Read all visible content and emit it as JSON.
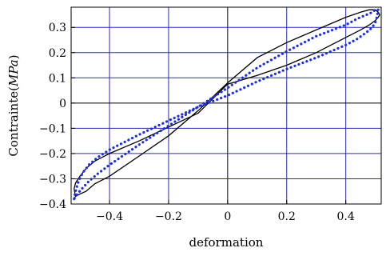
{
  "chart_data": {
    "type": "line",
    "title": "",
    "xlabel": "deformation",
    "ylabel": "Contrainte(",
    "ylabel_math": "MPa",
    "ylabel_close": ")",
    "xlim": [
      -0.53,
      0.52
    ],
    "ylim": [
      -0.4,
      0.38
    ],
    "xticks": [
      -0.4,
      -0.2,
      0,
      0.2,
      0.4
    ],
    "xtick_labels": [
      "−0.4",
      "−0.2",
      "0",
      "0.2",
      "0.4"
    ],
    "yticks": [
      -0.4,
      -0.3,
      -0.2,
      -0.1,
      0,
      0.1,
      0.2,
      0.3
    ],
    "ytick_labels": [
      "−0.4",
      "−0.3",
      "−0.2",
      "−0.1",
      "0",
      "0.1",
      "0.2",
      "0.3"
    ],
    "grid": true,
    "series": [
      {
        "name": "",
        "style": "solid",
        "color": "#000000",
        "x": [
          -0.52,
          -0.515,
          -0.5,
          -0.48,
          -0.45,
          -0.4,
          -0.3,
          -0.2,
          -0.1,
          0.0,
          0.1,
          0.2,
          0.3,
          0.4,
          0.45,
          0.48,
          0.5,
          0.51,
          0.515,
          0.51,
          0.5,
          0.48,
          0.45,
          0.4,
          0.3,
          0.2,
          0.1,
          0.0,
          -0.1,
          -0.2,
          -0.3,
          -0.4,
          -0.45,
          -0.48,
          -0.5,
          -0.515,
          -0.52
        ],
        "y": [
          -0.34,
          -0.317,
          -0.29,
          -0.26,
          -0.23,
          -0.2,
          -0.15,
          -0.095,
          -0.04,
          0.075,
          0.11,
          0.15,
          0.2,
          0.26,
          0.29,
          0.31,
          0.327,
          0.34,
          0.35,
          0.36,
          0.37,
          0.37,
          0.36,
          0.34,
          0.29,
          0.24,
          0.18,
          0.08,
          -0.03,
          -0.13,
          -0.21,
          -0.29,
          -0.32,
          -0.35,
          -0.36,
          -0.37,
          -0.34
        ]
      },
      {
        "name": "",
        "style": "dotted",
        "color": "#1f2fe0",
        "x": [
          -0.52,
          -0.515,
          -0.505,
          -0.49,
          -0.47,
          -0.44,
          -0.4,
          -0.3,
          -0.2,
          -0.1,
          0.0,
          0.1,
          0.2,
          0.3,
          0.4,
          0.44,
          0.47,
          0.49,
          0.5,
          0.505,
          0.51,
          0.5,
          0.49,
          0.47,
          0.44,
          0.4,
          0.3,
          0.2,
          0.1,
          0.0,
          -0.1,
          -0.2,
          -0.3,
          -0.4,
          -0.44,
          -0.47,
          -0.49,
          -0.505,
          -0.515,
          -0.52
        ],
        "y": [
          -0.38,
          -0.35,
          -0.31,
          -0.275,
          -0.245,
          -0.215,
          -0.185,
          -0.125,
          -0.07,
          -0.015,
          0.03,
          0.085,
          0.135,
          0.18,
          0.23,
          0.255,
          0.28,
          0.3,
          0.32,
          0.34,
          0.37,
          0.37,
          0.36,
          0.35,
          0.335,
          0.31,
          0.265,
          0.205,
          0.14,
          0.06,
          -0.015,
          -0.09,
          -0.165,
          -0.245,
          -0.28,
          -0.31,
          -0.335,
          -0.355,
          -0.37,
          -0.38
        ]
      }
    ]
  }
}
